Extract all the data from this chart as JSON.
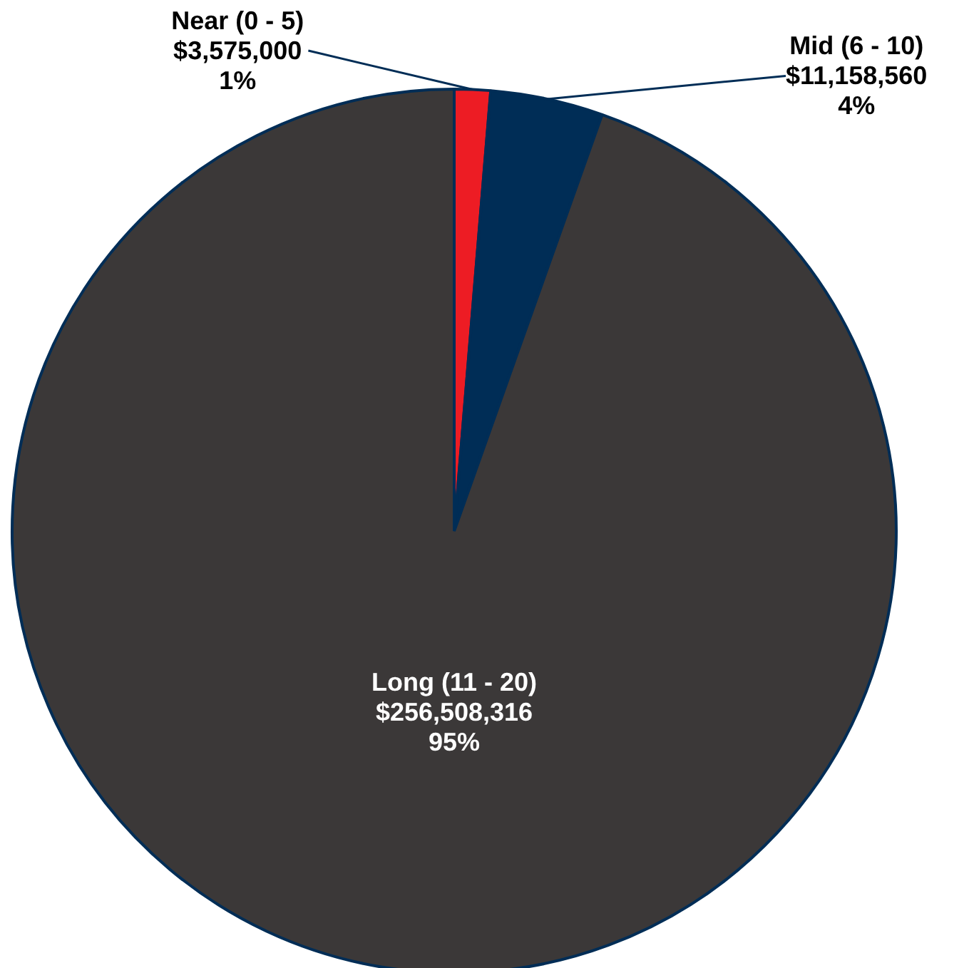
{
  "chart_data": {
    "type": "pie",
    "categories": [
      "Near (0 - 5)",
      "Mid (6 - 10)",
      "Long (11 - 20)"
    ],
    "values": [
      3575000,
      11158560,
      256508316
    ],
    "colors": [
      "#ed1c24",
      "#002d56",
      "#3b3838"
    ],
    "value_labels": [
      "$3,575,000\n1%",
      "$11,158,560\n4%",
      "$256,508,316\n95%"
    ]
  }
}
